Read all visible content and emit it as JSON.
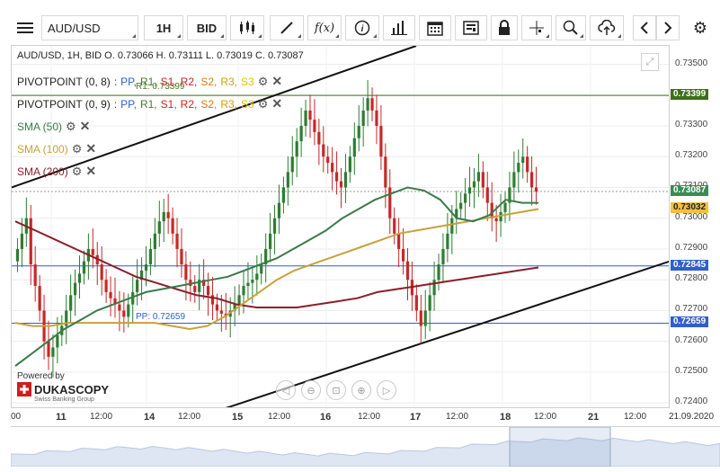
{
  "toolbar": {
    "symbol": "AUD/USD",
    "timeframe": "1H",
    "price_side": "BID",
    "icons": [
      "menu-icon",
      "candles-icon",
      "draw-icon",
      "fx-icon",
      "info-icon",
      "bars-icon",
      "calendar-icon",
      "news-icon",
      "lock-icon",
      "crosshair-icon",
      "zoom-icon",
      "upload-icon",
      "prev-icon",
      "next-icon",
      "settings-icon"
    ]
  },
  "legend": {
    "ohlc": "AUD/USD, 1H, BID    O. 0.73066 H. 0.73111 L. 0.73019 C. 0.73087",
    "pivot1": {
      "name": "PIVOTPOINT (0, 8)",
      "sep": ":",
      "pp": "PP,",
      "r1": "R1,",
      "s1": "S1,",
      "r2": "R2,",
      "s2": "S2,",
      "r3": "R3,",
      "s3": "S3"
    },
    "pivot2": {
      "name": "PIVOTPOINT (0, 9)",
      "sep": ":",
      "pp": "PP,",
      "r1": "R1,",
      "s1": "S1,",
      "r2": "R2,",
      "s2": "S2,",
      "r3": "R3,",
      "s3": "S3"
    },
    "sma50": "SMA (50)",
    "sma100": "SMA (100)",
    "sma200": "SMA (200)",
    "r1_label": "R1: 0.73399",
    "pp_label": "PP: 0.72659"
  },
  "brand": {
    "powered": "Powered by",
    "name": "DUKASCOPY",
    "sub": "Swiss Banking Group"
  },
  "colors": {
    "sma50": "#3a7a4a",
    "sma100": "#c9a13a",
    "sma200": "#8b1e2a",
    "pp": "#2f5fc9",
    "r1": "#4a7a2a",
    "s1": "#cc2222",
    "r2": "#cc2222",
    "s2": "#e07a00",
    "r3": "#d4a000",
    "s3": "#e6c200",
    "bull": "#2e7d32",
    "bear": "#c62828"
  },
  "yaxis": {
    "ticks": [
      "0.73500",
      "0.73400",
      "0.73300",
      "0.73200",
      "0.73100",
      "0.73000",
      "0.72900",
      "0.72800",
      "0.72700",
      "0.72600",
      "0.72500",
      "0.72400"
    ],
    "tags": [
      {
        "text": "0.73399",
        "bg": "#3e6e1e",
        "fg": "#ffffff"
      },
      {
        "text": "0.73087",
        "bg": "#3d8a55",
        "fg": "#ffffff"
      },
      {
        "text": "0.73032",
        "bg": "#f0c040",
        "fg": "#222222"
      },
      {
        "text": "0.72845",
        "bg": "#2f5fc9",
        "fg": "#ffffff"
      },
      {
        "text": "0.72659",
        "bg": "#2f5fc9",
        "fg": "#ffffff"
      }
    ]
  },
  "xaxis": [
    {
      "text": "00",
      "bold": false
    },
    {
      "text": "11",
      "bold": true
    },
    {
      "text": "12:00",
      "bold": false
    },
    {
      "text": "14",
      "bold": true
    },
    {
      "text": "12:00",
      "bold": false
    },
    {
      "text": "15",
      "bold": true
    },
    {
      "text": "12:00",
      "bold": false
    },
    {
      "text": "16",
      "bold": true
    },
    {
      "text": "12:00",
      "bold": false
    },
    {
      "text": "17",
      "bold": true
    },
    {
      "text": "12:00",
      "bold": false
    },
    {
      "text": "18",
      "bold": true
    },
    {
      "text": "12:00",
      "bold": false
    },
    {
      "text": "21",
      "bold": true
    },
    {
      "text": "12:00",
      "bold": false
    },
    {
      "text": "21.09.2020",
      "bold": false
    }
  ],
  "chart_data": {
    "type": "line",
    "ylim": [
      0.7238,
      0.7356
    ],
    "levels": {
      "r1": 0.73399,
      "h_line": 0.72845,
      "pp": 0.72659,
      "last": 0.73087
    },
    "close": [
      0.729,
      0.7295,
      0.73,
      0.7285,
      0.7278,
      0.727,
      0.726,
      0.7255,
      0.7258,
      0.7262,
      0.7265,
      0.727,
      0.7275,
      0.7279,
      0.7282,
      0.7286,
      0.729,
      0.7288,
      0.7285,
      0.728,
      0.7276,
      0.7274,
      0.7272,
      0.727,
      0.7268,
      0.7272,
      0.7276,
      0.728,
      0.7283,
      0.7285,
      0.729,
      0.7295,
      0.7299,
      0.7302,
      0.73,
      0.7295,
      0.729,
      0.7285,
      0.728,
      0.7278,
      0.7276,
      0.728,
      0.7278,
      0.7275,
      0.7272,
      0.727,
      0.7269,
      0.7268,
      0.727,
      0.7272,
      0.7275,
      0.7278,
      0.7279,
      0.728,
      0.7282,
      0.7285,
      0.729,
      0.7295,
      0.73,
      0.7305,
      0.731,
      0.7315,
      0.732,
      0.7325,
      0.733,
      0.7335,
      0.7332,
      0.7328,
      0.7324,
      0.732,
      0.7318,
      0.7315,
      0.7312,
      0.731,
      0.7315,
      0.732,
      0.7326,
      0.733,
      0.7335,
      0.7339,
      0.7335,
      0.733,
      0.732,
      0.731,
      0.73,
      0.7295,
      0.729,
      0.7286,
      0.728,
      0.7275,
      0.727,
      0.7265,
      0.727,
      0.7275,
      0.728,
      0.7285,
      0.729,
      0.7295,
      0.73,
      0.7303,
      0.7305,
      0.7308,
      0.731,
      0.7312,
      0.7315,
      0.731,
      0.7305,
      0.73,
      0.7299,
      0.7302,
      0.7305,
      0.731,
      0.7315,
      0.7318,
      0.732,
      0.7315,
      0.731,
      0.73087
    ],
    "sma50": [
      0.7252,
      0.7256,
      0.726,
      0.7264,
      0.7267,
      0.727,
      0.7272,
      0.7274,
      0.7276,
      0.7277,
      0.7278,
      0.7279,
      0.728,
      0.7281,
      0.7283,
      0.7285,
      0.7287,
      0.729,
      0.7293,
      0.7296,
      0.73,
      0.7303,
      0.7306,
      0.7308,
      0.731,
      0.7309,
      0.7306,
      0.73,
      0.7299,
      0.7301,
      0.7306,
      0.7305,
      0.7305
    ],
    "sma100": [
      0.7266,
      0.7265,
      0.7265,
      0.7266,
      0.7266,
      0.7266,
      0.7266,
      0.7266,
      0.7266,
      0.7265,
      0.7264,
      0.7265,
      0.7268,
      0.7272,
      0.7276,
      0.728,
      0.7283,
      0.7285,
      0.7287,
      0.7289,
      0.7291,
      0.7293,
      0.7295,
      0.7296,
      0.7297,
      0.7298,
      0.7299,
      0.73,
      0.7301,
      0.7302,
      0.7303
    ],
    "sma200": [
      0.7299,
      0.7296,
      0.7293,
      0.729,
      0.7287,
      0.7284,
      0.7281,
      0.7279,
      0.7277,
      0.7275,
      0.7274,
      0.7272,
      0.7271,
      0.7271,
      0.7271,
      0.7272,
      0.7273,
      0.7274,
      0.7276,
      0.7277,
      0.7278,
      0.7279,
      0.728,
      0.7281,
      0.7282,
      0.7283,
      0.7284
    ]
  }
}
